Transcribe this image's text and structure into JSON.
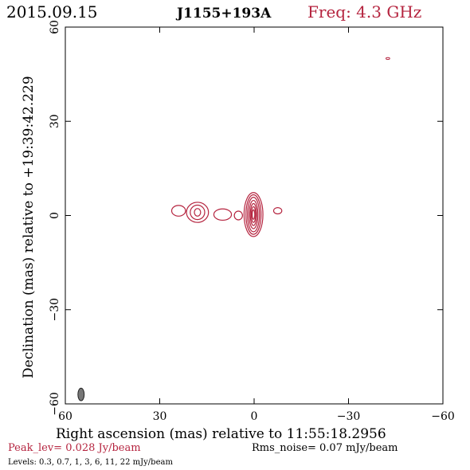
{
  "header": {
    "date": "2015.09.15",
    "source": "J1155+193A",
    "freq": "Freq: 4.3 GHz"
  },
  "footer": {
    "peak": "Peak_lev=  0.028 Jy/beam",
    "rms": "Rms_noise= 0.07 mJy/beam",
    "levels": "Levels: 0.3, 0.7,   1,   3,   6,  11,  22 mJy/beam"
  },
  "colors": {
    "contour": "#b5243f",
    "beam": "#777777",
    "axis": "#000000"
  },
  "chart_data": {
    "type": "contour",
    "title": "J1155+193A",
    "xlabel": "Right ascension (mas) relative to 11:55:18.2956",
    "ylabel": "Declination (mas) relative to +19:39:42.229",
    "xlim": [
      60,
      -60
    ],
    "ylim": [
      -60,
      60
    ],
    "xticks": [
      60,
      30,
      0,
      -30,
      -60
    ],
    "yticks": [
      -60,
      -30,
      0,
      30,
      60
    ],
    "xtick_labels": [
      "60",
      "30",
      "0",
      "−30",
      "−60"
    ],
    "ytick_labels": [
      "−60",
      "−30",
      "0",
      "30",
      "60"
    ],
    "levels_mJy": [
      0.3,
      0.7,
      1,
      3,
      6,
      11,
      22
    ],
    "components": [
      {
        "x": 0.2,
        "y": 0.3,
        "rx": [
          0.4,
          0.7,
          1.0,
          1.4,
          1.9,
          2.4,
          3.0
        ],
        "ry": [
          1.5,
          2.5,
          3.5,
          4.5,
          5.5,
          6.3,
          7.0
        ]
      },
      {
        "x": 18,
        "y": 1,
        "rx": [
          1.0,
          2.3,
          3.5
        ],
        "ry": [
          1.2,
          2.3,
          3.2
        ]
      },
      {
        "x": 24,
        "y": 1.5,
        "rx": [
          2.2
        ],
        "ry": [
          1.7
        ]
      },
      {
        "x": 10,
        "y": 0.3,
        "rx": [
          2.8
        ],
        "ry": [
          1.8
        ]
      },
      {
        "x": -7.5,
        "y": 1.5,
        "rx": [
          1.3
        ],
        "ry": [
          1.0
        ]
      },
      {
        "x": 5,
        "y": 0,
        "rx": [
          1.3
        ],
        "ry": [
          1.4
        ]
      }
    ],
    "outlier": {
      "x": -42.5,
      "y": 50,
      "rx": 0.6,
      "ry": 0.3
    },
    "beam": {
      "x": 55,
      "y": -57,
      "rx": 1.0,
      "ry": 2.0
    }
  }
}
